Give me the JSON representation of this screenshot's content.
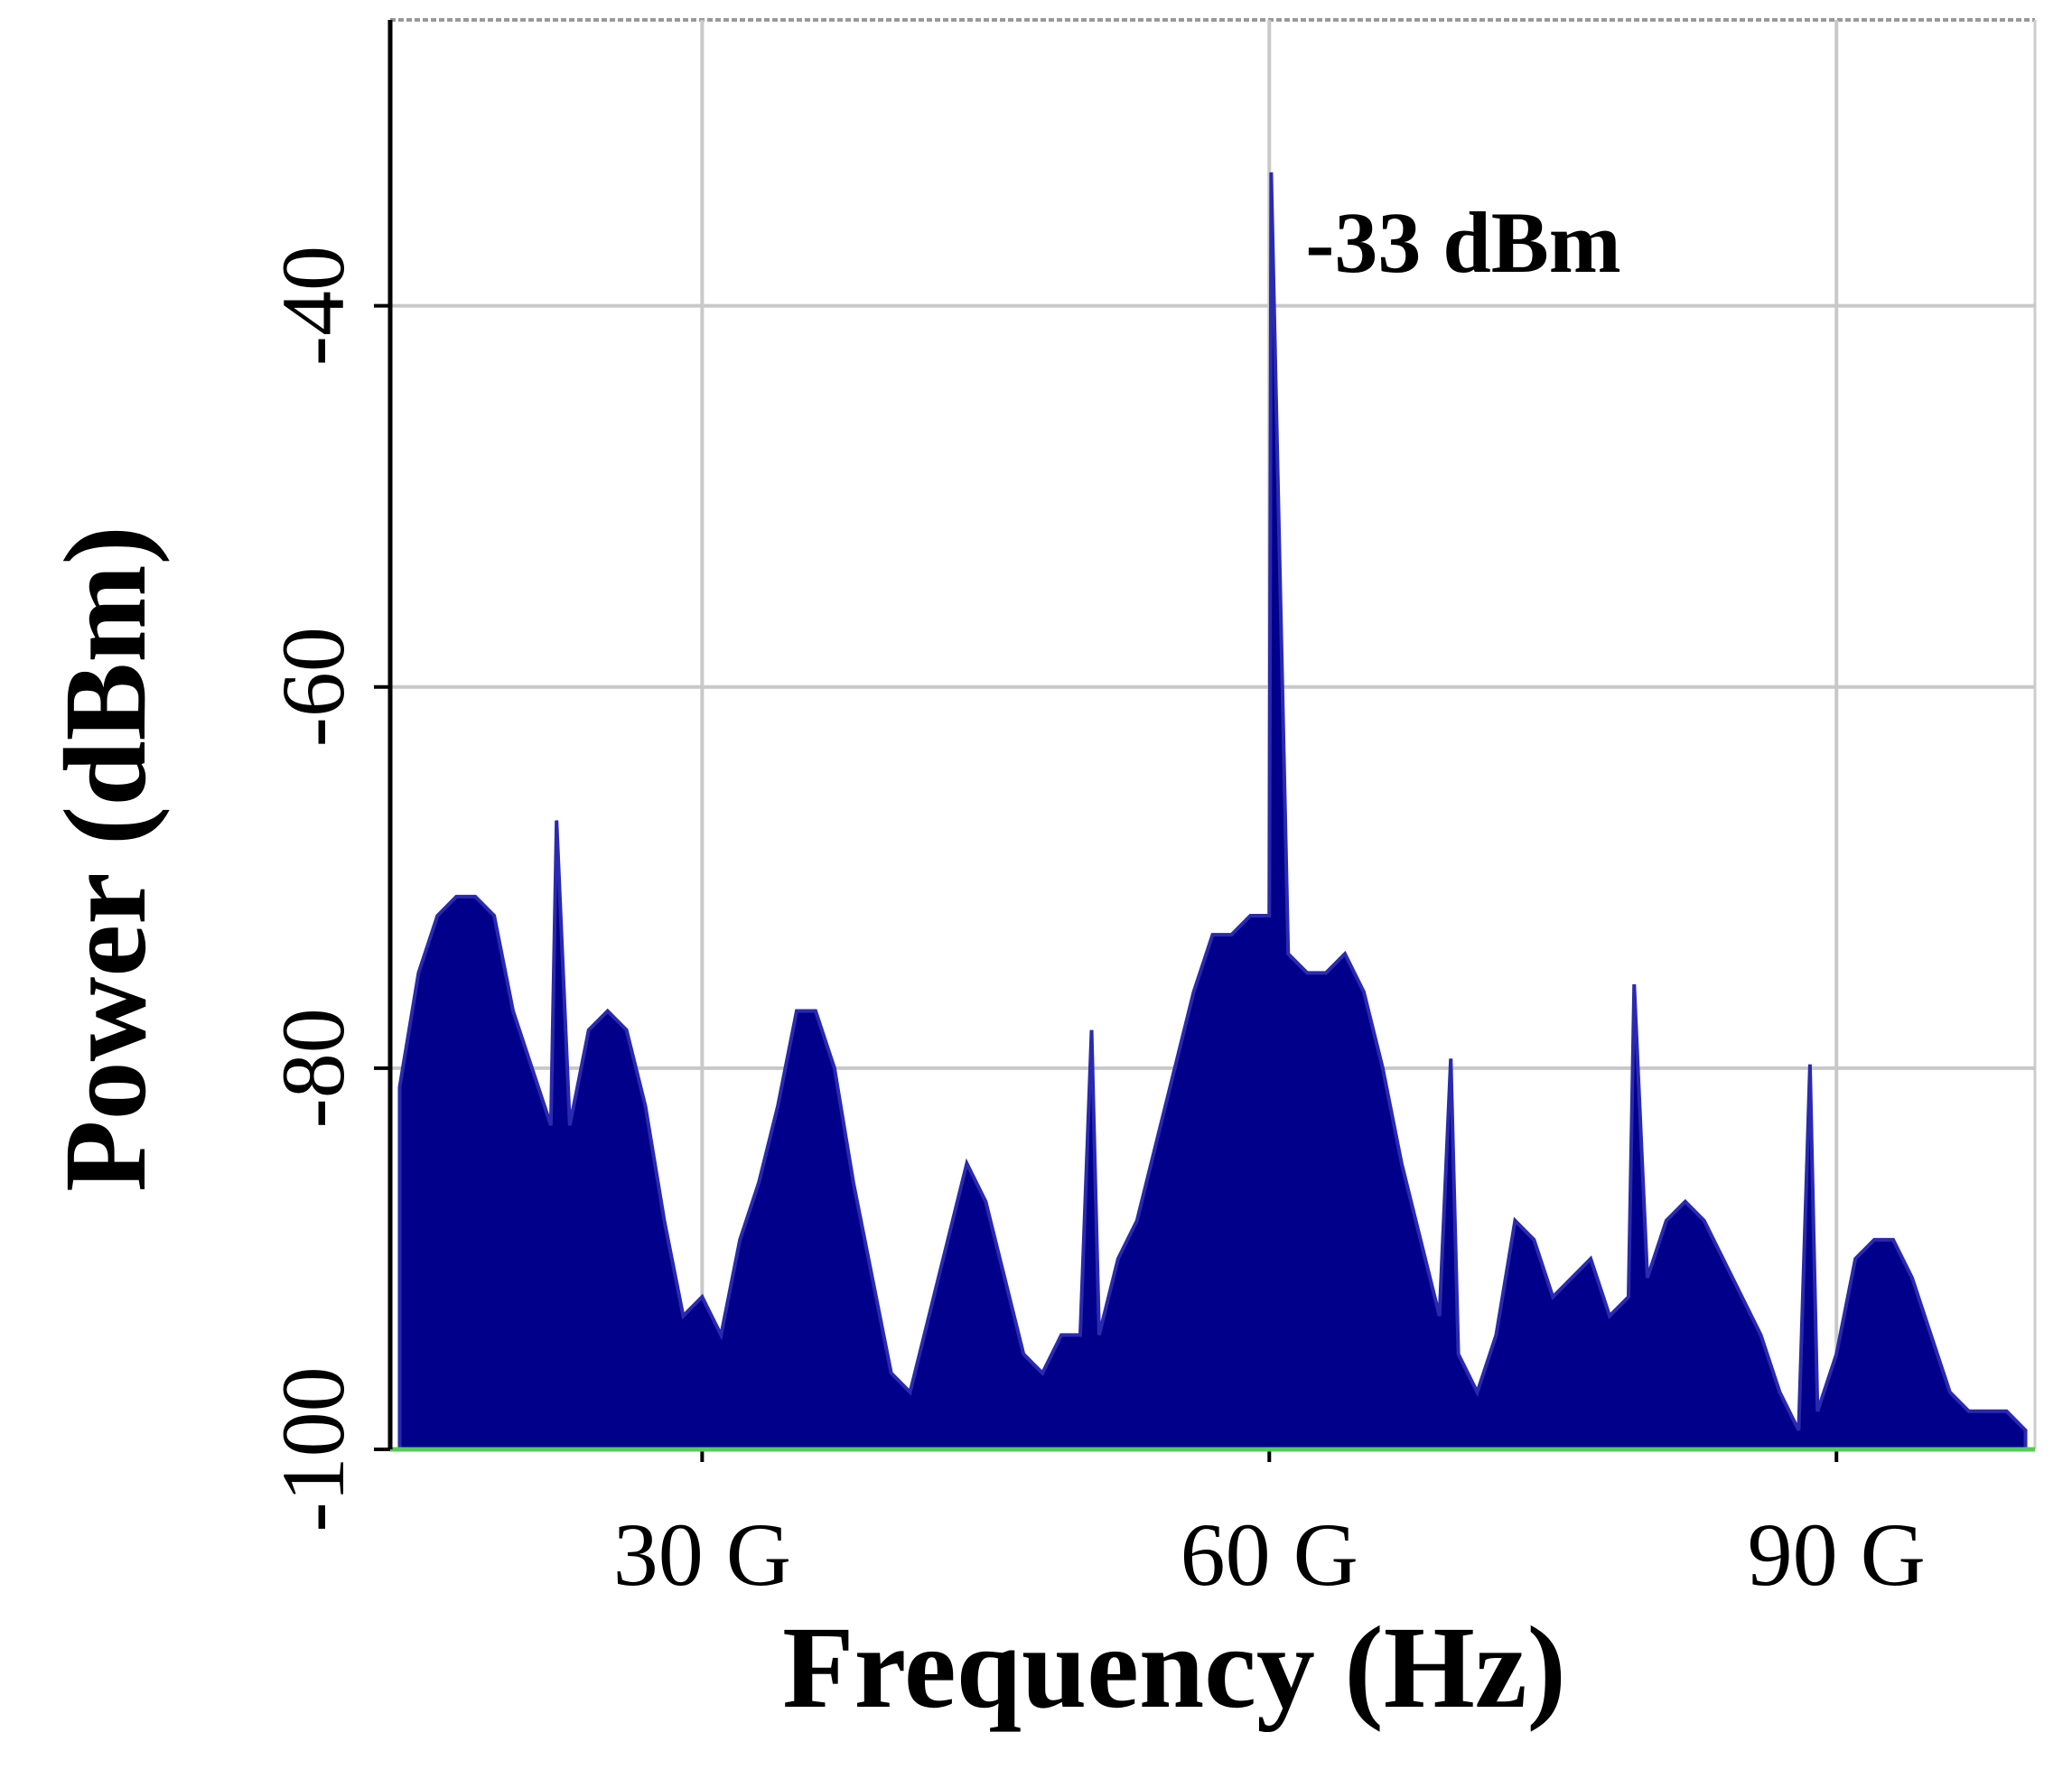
{
  "chart_data": {
    "type": "area",
    "x_label": "Frequency (Hz)",
    "y_label": "Power (dBm)",
    "annotation": "-33 dBm",
    "color": "#00008b",
    "xlim": [
      13500000000.0,
      100500000000.0
    ],
    "ylim": [
      -100,
      -25
    ],
    "xticks": [
      {
        "value": 30000000000.0,
        "label": "30 G"
      },
      {
        "value": 60000000000.0,
        "label": "60 G"
      },
      {
        "value": 90000000000.0,
        "label": "90 G"
      }
    ],
    "yticks": [
      -40,
      -60,
      -80,
      -100
    ],
    "grid": true,
    "x": [
      14000000000.0,
      15000000000.0,
      16000000000.0,
      17000000000.0,
      18000000000.0,
      19000000000.0,
      20000000000.0,
      21000000000.0,
      22000000000.0,
      22300000000.0,
      23000000000.0,
      24000000000.0,
      25000000000.0,
      26000000000.0,
      27000000000.0,
      28000000000.0,
      29000000000.0,
      30000000000.0,
      31000000000.0,
      32000000000.0,
      33000000000.0,
      34000000000.0,
      35000000000.0,
      36000000000.0,
      37000000000.0,
      38000000000.0,
      39000000000.0,
      40000000000.0,
      41000000000.0,
      42000000000.0,
      43000000000.0,
      44000000000.0,
      45000000000.0,
      46000000000.0,
      47000000000.0,
      48000000000.0,
      49000000000.0,
      50000000000.0,
      50600000000.0,
      51000000000.0,
      52000000000.0,
      53000000000.0,
      54000000000.0,
      55000000000.0,
      56000000000.0,
      57000000000.0,
      58000000000.0,
      59000000000.0,
      60000000000.0,
      60100000000.0,
      61000000000.0,
      62000000000.0,
      63000000000.0,
      64000000000.0,
      65000000000.0,
      66000000000.0,
      67000000000.0,
      68000000000.0,
      69000000000.0,
      69600000000.0,
      70000000000.0,
      71000000000.0,
      72000000000.0,
      73000000000.0,
      74000000000.0,
      75000000000.0,
      76000000000.0,
      77000000000.0,
      78000000000.0,
      79000000000.0,
      79300000000.0,
      80000000000.0,
      81000000000.0,
      82000000000.0,
      83000000000.0,
      84000000000.0,
      85000000000.0,
      86000000000.0,
      87000000000.0,
      88000000000.0,
      88600000000.0,
      89000000000.0,
      90000000000.0,
      91000000000.0,
      92000000000.0,
      93000000000.0,
      94000000000.0,
      95000000000.0,
      96000000000.0,
      97000000000.0,
      98000000000.0,
      99000000000.0,
      100000000000.0
    ],
    "values": [
      -81,
      -75,
      -72,
      -71,
      -71,
      -72,
      -77,
      -80,
      -83,
      -67,
      -83,
      -78,
      -77,
      -78,
      -82,
      -88,
      -93,
      -92,
      -94,
      -89,
      -86,
      -82,
      -77,
      -77,
      -80,
      -86,
      -91,
      -96,
      -97,
      -93,
      -89,
      -85,
      -87,
      -91,
      -95,
      -96,
      -94,
      -94,
      -78,
      -94,
      -90,
      -88,
      -84,
      -80,
      -76,
      -73,
      -73,
      -72,
      -72,
      -33,
      -74,
      -75,
      -75,
      -74,
      -76,
      -80,
      -85,
      -89,
      -93,
      -79.5,
      -95,
      -97,
      -94,
      -88,
      -89,
      -92,
      -91,
      -90,
      -93,
      -92,
      -75.6,
      -91,
      -88,
      -87,
      -88,
      -90,
      -92,
      -94,
      -97,
      -99,
      -79.8,
      -98,
      -95,
      -90,
      -89,
      -89,
      -91,
      -94,
      -97,
      -98,
      -98,
      -98,
      -99
    ]
  }
}
